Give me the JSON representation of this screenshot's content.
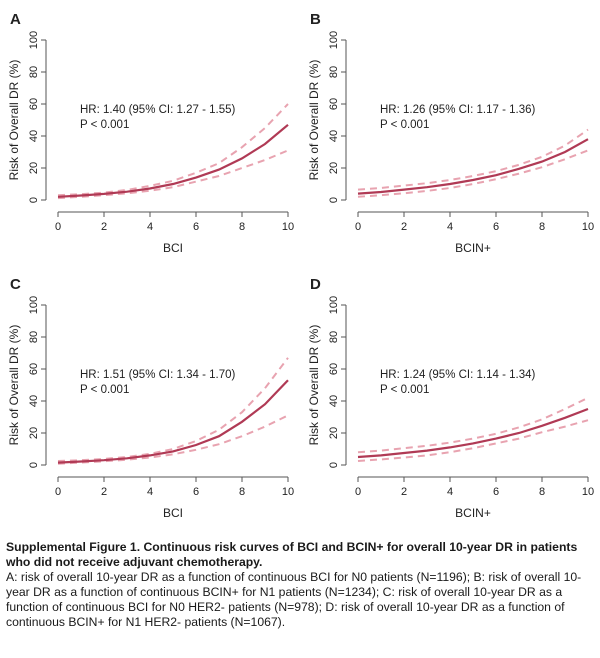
{
  "chart_data": [
    {
      "type": "line",
      "panel_label": "A",
      "xlabel": "BCI",
      "ylabel": "Risk of Overall DR (%)",
      "xlim": [
        0,
        10
      ],
      "ylim": [
        0,
        100
      ],
      "xticks": [
        0,
        2,
        4,
        6,
        8,
        10
      ],
      "yticks": [
        0,
        20,
        40,
        60,
        80,
        100
      ],
      "annotation_hr": "HR: 1.40 (95% CI: 1.27 - 1.55)",
      "annotation_p": "P < 0.001",
      "x": [
        0,
        1,
        2,
        3,
        4,
        5,
        6,
        7,
        8,
        9,
        10
      ],
      "series": [
        {
          "values": [
            2,
            2.8,
            3.8,
            5.2,
            7.2,
            10,
            14,
            19,
            26,
            35,
            47
          ]
        },
        {
          "values": [
            3,
            3.6,
            4.6,
            6.3,
            8.8,
            12,
            17,
            23,
            33,
            45,
            60
          ]
        },
        {
          "values": [
            1.2,
            2,
            3,
            4.2,
            5.8,
            8,
            11.5,
            15,
            20,
            25,
            31
          ]
        }
      ]
    },
    {
      "type": "line",
      "panel_label": "B",
      "xlabel": "BCIN+",
      "ylabel": "Risk of Overall DR (%)",
      "xlim": [
        0,
        10
      ],
      "ylim": [
        0,
        100
      ],
      "xticks": [
        0,
        2,
        4,
        6,
        8,
        10
      ],
      "yticks": [
        0,
        20,
        40,
        60,
        80,
        100
      ],
      "annotation_hr": "HR: 1.26 (95% CI: 1.17 - 1.36)",
      "annotation_p": "P < 0.001",
      "x": [
        0,
        1,
        2,
        3,
        4,
        5,
        6,
        7,
        8,
        9,
        10
      ],
      "series": [
        {
          "values": [
            4,
            5,
            6.5,
            8,
            10,
            12.5,
            15.5,
            19.5,
            24,
            30,
            38
          ]
        },
        {
          "values": [
            6.5,
            7.5,
            9,
            10.5,
            12.5,
            15,
            18,
            22,
            27,
            34,
            44
          ]
        },
        {
          "values": [
            2,
            3,
            4.2,
            5.7,
            7.5,
            10,
            13,
            16.5,
            20.5,
            25.5,
            31
          ]
        }
      ]
    },
    {
      "type": "line",
      "panel_label": "C",
      "xlabel": "BCI",
      "ylabel": "Risk of Overall DR (%)",
      "xlim": [
        0,
        10
      ],
      "ylim": [
        0,
        100
      ],
      "xticks": [
        0,
        2,
        4,
        6,
        8,
        10
      ],
      "yticks": [
        0,
        20,
        40,
        60,
        80,
        100
      ],
      "annotation_hr": "HR: 1.51 (95% CI: 1.34 - 1.70)",
      "annotation_p": "P < 0.001",
      "x": [
        0,
        1,
        2,
        3,
        4,
        5,
        6,
        7,
        8,
        9,
        10
      ],
      "series": [
        {
          "values": [
            1.5,
            2.2,
            3,
            4.2,
            6,
            8.5,
            12.5,
            18,
            27,
            38,
            53
          ]
        },
        {
          "values": [
            2.5,
            3,
            3.8,
            5,
            7,
            10,
            15,
            22,
            33,
            48,
            67
          ]
        },
        {
          "values": [
            0.8,
            1.5,
            2.3,
            3.3,
            4.7,
            6.7,
            9.5,
            13,
            18,
            24,
            31
          ]
        }
      ]
    },
    {
      "type": "line",
      "panel_label": "D",
      "xlabel": "BCIN+",
      "ylabel": "Risk of Overall DR (%)",
      "xlim": [
        0,
        10
      ],
      "ylim": [
        0,
        100
      ],
      "xticks": [
        0,
        2,
        4,
        6,
        8,
        10
      ],
      "yticks": [
        0,
        20,
        40,
        60,
        80,
        100
      ],
      "annotation_hr": "HR: 1.24 (95% CI: 1.14 - 1.34)",
      "annotation_p": "P < 0.001",
      "x": [
        0,
        1,
        2,
        3,
        4,
        5,
        6,
        7,
        8,
        9,
        10
      ],
      "series": [
        {
          "values": [
            5,
            6,
            7.5,
            9,
            11,
            13.5,
            16.5,
            20,
            24.5,
            29.5,
            35
          ]
        },
        {
          "values": [
            8,
            9,
            10.5,
            12,
            14,
            16.5,
            19.5,
            23.5,
            28.5,
            35,
            42
          ]
        },
        {
          "values": [
            2.5,
            3.5,
            4.7,
            6,
            8,
            10.5,
            13.5,
            16.5,
            20.5,
            24,
            28
          ]
        }
      ]
    }
  ],
  "colors": {
    "estimate": "#b03a55",
    "ci_band": "#e8a3b0",
    "axis": "#555555"
  },
  "caption": {
    "title": "Supplemental Figure 1. Continuous risk curves of BCI and BCIN+ for overall 10-year DR in patients who did not receive adjuvant chemotherapy.",
    "body": "A: risk of overall 10-year DR as a function of continuous BCI for N0 patients (N=1196); B: risk of overall 10-year DR as a function of continuous BCIN+ for N1 patients (N=1234); C: risk of overall 10-year DR as a function of continuous BCI for N0 HER2- patients (N=978); D: risk of overall 10-year DR as a function of continuous BCIN+ for N1 HER2- patients (N=1067)."
  }
}
